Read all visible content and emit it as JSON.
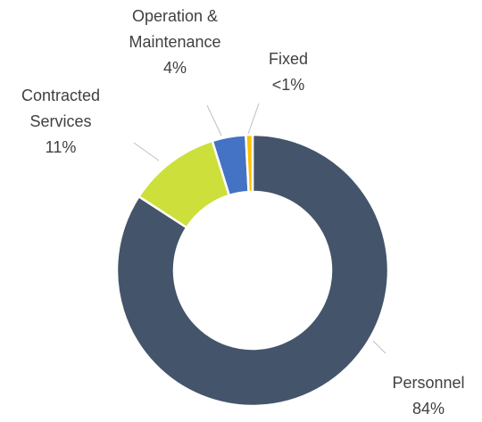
{
  "chart_data": {
    "type": "donut",
    "categories": [
      "Personnel",
      "Contracted Services",
      "Operation & Maintenance",
      "Fixed"
    ],
    "values": [
      84,
      11,
      4,
      0.8
    ],
    "value_labels": [
      "84%",
      "11%",
      "4%",
      "<1%"
    ],
    "colors": [
      "#44546a",
      "#cddf3b",
      "#4472c4",
      "#ffc000"
    ]
  }
}
